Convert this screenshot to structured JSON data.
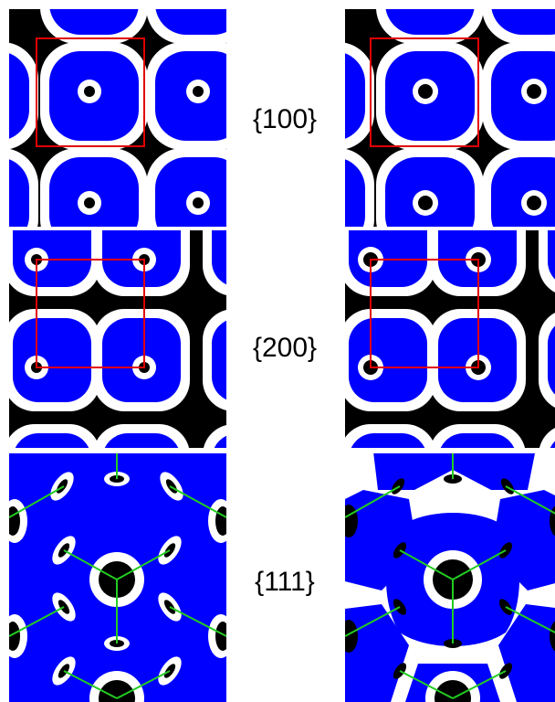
{
  "rows": [
    {
      "label": "{100}"
    },
    {
      "label": "{200}"
    },
    {
      "label": "{111}"
    }
  ],
  "colors": {
    "background": "#000000",
    "domain": "#0000ff",
    "border": "#ffffff",
    "cell_outline": "#e00000",
    "linker": "#22cc22"
  }
}
